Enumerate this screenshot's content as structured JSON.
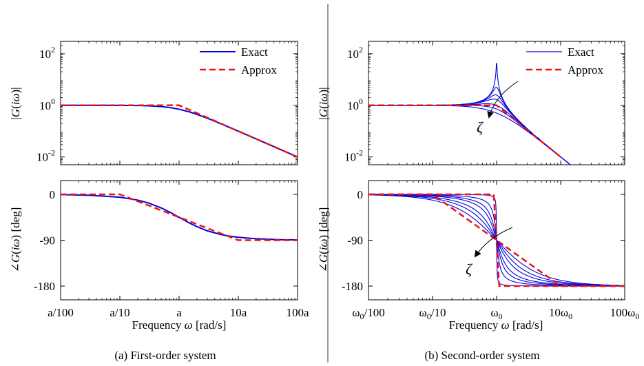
{
  "colors": {
    "exact": "#0000dd",
    "approx": "#ee1111",
    "divider": "#555555"
  },
  "chart_data": [
    {
      "id": "first-order",
      "caption": "(a) First-order system",
      "xlabel": "Frequency ω [rad/s]",
      "x_ticks": [
        {
          "value": 0.01,
          "label": "a/100"
        },
        {
          "value": 0.1,
          "label": "a/10"
        },
        {
          "value": 1,
          "label": "a"
        },
        {
          "value": 10,
          "label": "10a"
        },
        {
          "value": 100,
          "label": "100a"
        }
      ],
      "xlim": [
        0.01,
        100
      ],
      "legend": {
        "position": "top-right",
        "entries": [
          "Exact",
          "Approx"
        ]
      },
      "magnitude": {
        "type": "line",
        "scale": "log",
        "ylabel": "|G(iω)|",
        "ylim": [
          0.005,
          300
        ],
        "y_ticks": [
          {
            "value": 0.01,
            "label": "10^-2"
          },
          {
            "value": 1,
            "label": "10^0"
          },
          {
            "value": 100,
            "label": "10^2"
          }
        ],
        "series": [
          {
            "name": "Exact",
            "x": [
              0.01,
              0.05,
              0.1,
              0.2,
              0.3,
              0.5,
              0.7,
              1,
              1.5,
              2,
              3,
              5,
              7,
              10,
              20,
              50,
              100
            ],
            "y": [
              1,
              0.999,
              0.995,
              0.981,
              0.958,
              0.894,
              0.819,
              0.707,
              0.555,
              0.447,
              0.316,
              0.196,
              0.141,
              0.0995,
              0.05,
              0.02,
              0.01
            ]
          },
          {
            "name": "Approx",
            "x": [
              0.01,
              1,
              100
            ],
            "y": [
              1,
              1,
              0.01
            ]
          }
        ]
      },
      "phase": {
        "type": "line",
        "ylabel": "∠G(iω) [deg]",
        "ylim": [
          -207,
          27
        ],
        "y_ticks": [
          {
            "value": 0,
            "label": "0"
          },
          {
            "value": -90,
            "label": "-90"
          },
          {
            "value": -180,
            "label": "-180"
          }
        ],
        "series": [
          {
            "name": "Exact",
            "x": [
              0.01,
              0.03,
              0.1,
              0.2,
              0.3,
              0.5,
              0.7,
              1,
              1.5,
              2,
              3,
              5,
              7,
              10,
              20,
              50,
              100
            ],
            "y": [
              -0.6,
              -1.7,
              -5.7,
              -11.3,
              -16.7,
              -26.6,
              -35,
              -45,
              -56.3,
              -63.4,
              -71.6,
              -78.7,
              -81.9,
              -84.3,
              -87.1,
              -88.9,
              -89.4
            ]
          },
          {
            "name": "Approx",
            "x": [
              0.01,
              0.1,
              10,
              100
            ],
            "y": [
              0,
              0,
              -90,
              -90
            ]
          }
        ]
      }
    },
    {
      "id": "second-order",
      "caption": "(b) Second-order system",
      "xlabel": "Frequency ω [rad/s]",
      "x_ticks": [
        {
          "value": 0.01,
          "label": "ω0/100"
        },
        {
          "value": 0.1,
          "label": "ω0/10"
        },
        {
          "value": 1,
          "label": "ω0"
        },
        {
          "value": 10,
          "label": "10ω0"
        },
        {
          "value": 100,
          "label": "100ω0"
        }
      ],
      "xlim": [
        0.01,
        100
      ],
      "legend": {
        "position": "top-right",
        "entries": [
          "Exact",
          "Approx"
        ]
      },
      "annotation": "ζ",
      "magnitude": {
        "type": "line",
        "scale": "log",
        "ylabel": "|G(iω)|",
        "ylim": [
          0.005,
          300
        ],
        "y_ticks": [
          {
            "value": 0.01,
            "label": "10^-2"
          },
          {
            "value": 1,
            "label": "10^0"
          },
          {
            "value": 100,
            "label": "10^2"
          }
        ],
        "zeta": [
          0.01,
          0.1,
          0.2,
          0.3,
          0.5,
          0.7,
          1.0
        ],
        "approx": {
          "x": [
            0.01,
            1,
            10
          ],
          "y": [
            1,
            1,
            0.01
          ]
        }
      },
      "phase": {
        "type": "line",
        "ylabel": "∠G(iω) [deg]",
        "ylim": [
          -207,
          27
        ],
        "y_ticks": [
          {
            "value": 0,
            "label": "0"
          },
          {
            "value": -90,
            "label": "-90"
          },
          {
            "value": -180,
            "label": "-180"
          }
        ],
        "zeta": [
          0.01,
          0.1,
          0.2,
          0.3,
          0.5,
          0.7,
          1.0
        ],
        "approx": {
          "x": [
            0.01,
            0.1,
            10,
            100
          ],
          "y": [
            0,
            0,
            -180,
            -180
          ]
        },
        "approx_sharp": {
          "x": [
            0.01,
            0.9,
            1.1,
            100
          ],
          "y": [
            0,
            0,
            -180,
            -180
          ]
        }
      }
    }
  ]
}
